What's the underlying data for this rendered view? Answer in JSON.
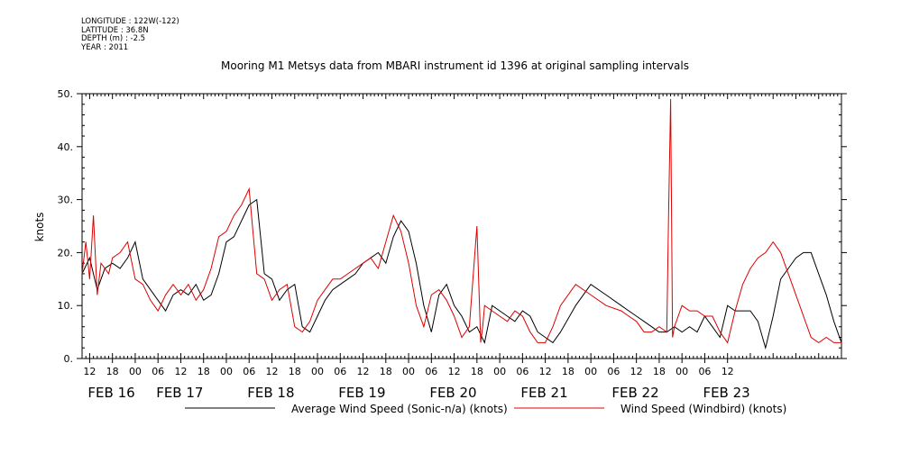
{
  "header": {
    "longitude": "LONGITUDE : 122W(-122)",
    "latitude": "LATITUDE : 36.8N",
    "depth": "DEPTH (m) : -2.5",
    "year": "YEAR : 2011",
    "title": "Mooring M1 Metsys data from MBARI instrument id 1396 at original sampling intervals"
  },
  "colors": {
    "series_average": "#000000",
    "series_windbird": "#dd0000",
    "axis": "#000000"
  },
  "chart_data": {
    "type": "line",
    "title": "Mooring M1 Metsys data from MBARI instrument id 1396 at original sampling intervals",
    "xlabel": "",
    "ylabel": "knots",
    "x_unit": "hours since FEB 16 00:00 (2011)",
    "xlim": [
      10,
      210
    ],
    "ylim": [
      0,
      50
    ],
    "yticks": [
      "0.",
      "10.",
      "20.",
      "30.",
      "40.",
      "50."
    ],
    "yticks_values": [
      0,
      10,
      20,
      30,
      40,
      50
    ],
    "xticks_hour_labels": [
      "12",
      "18",
      "00",
      "06",
      "12",
      "18",
      "00",
      "06",
      "12",
      "18",
      "00",
      "06",
      "12",
      "18",
      "00",
      "06",
      "12",
      "18",
      "00",
      "06",
      "12",
      "18",
      "00",
      "06",
      "12",
      "18",
      "00",
      "06",
      "12"
    ],
    "date_labels": [
      "FEB 16",
      "FEB 17",
      "FEB 18",
      "FEB 19",
      "FEB 20",
      "FEB 21",
      "FEB 22",
      "FEB 23"
    ],
    "grid": false,
    "legend_position": "bottom",
    "series": [
      {
        "name": "Average Wind Speed (Sonic-n/a) (knots)",
        "color": "#000000",
        "x": [
          10,
          12,
          14,
          16,
          18,
          20,
          22,
          24,
          26,
          28,
          30,
          32,
          34,
          36,
          38,
          40,
          42,
          44,
          46,
          48,
          50,
          52,
          54,
          56,
          58,
          60,
          62,
          64,
          66,
          68,
          70,
          72,
          74,
          76,
          78,
          80,
          82,
          84,
          86,
          88,
          90,
          92,
          94,
          96,
          98,
          100,
          102,
          104,
          106,
          108,
          110,
          112,
          114,
          116,
          118,
          120,
          122,
          124,
          126,
          128,
          130,
          132,
          134,
          136,
          140,
          144,
          148,
          152,
          154,
          156,
          158,
          160,
          162,
          164,
          166,
          168,
          170,
          172,
          174,
          176,
          178,
          180,
          182,
          184,
          186,
          188,
          190,
          192,
          194,
          196,
          198,
          200,
          202,
          204,
          206,
          208,
          210
        ],
        "y": [
          16,
          19,
          13,
          17,
          18,
          17,
          19,
          22,
          15,
          13,
          11,
          9,
          12,
          13,
          12,
          14,
          11,
          12,
          16,
          22,
          23,
          26,
          29,
          30,
          16,
          15,
          11,
          13,
          14,
          6,
          5,
          8,
          11,
          13,
          14,
          15,
          16,
          18,
          19,
          20,
          18,
          23,
          26,
          24,
          18,
          10,
          5,
          12,
          14,
          10,
          8,
          5,
          6,
          3,
          10,
          9,
          8,
          7,
          9,
          8,
          5,
          4,
          3,
          5,
          10,
          14,
          12,
          10,
          9,
          8,
          7,
          6,
          5,
          5,
          6,
          5,
          6,
          5,
          8,
          6,
          4,
          10,
          9,
          9,
          9,
          7,
          2,
          8,
          15,
          17,
          19,
          20,
          20,
          16,
          12,
          7,
          3
        ]
      },
      {
        "name": "Wind Speed (Windbird) (knots)",
        "color": "#dd0000",
        "x": [
          10,
          11,
          12,
          13,
          14,
          15,
          16,
          17,
          18,
          20,
          22,
          24,
          26,
          28,
          30,
          32,
          34,
          36,
          38,
          40,
          42,
          44,
          46,
          48,
          50,
          52,
          54,
          56,
          58,
          60,
          62,
          64,
          66,
          68,
          70,
          72,
          74,
          76,
          78,
          80,
          82,
          84,
          86,
          88,
          90,
          92,
          94,
          96,
          98,
          100,
          102,
          104,
          106,
          108,
          110,
          112,
          114,
          115,
          115.5,
          116,
          118,
          120,
          122,
          124,
          126,
          128,
          130,
          132,
          134,
          136,
          140,
          144,
          148,
          152,
          154,
          156,
          158,
          160,
          162,
          164,
          164.5,
          165,
          165.5,
          166,
          168,
          170,
          172,
          174,
          176,
          178,
          180,
          182,
          184,
          186,
          188,
          190,
          192,
          194,
          196,
          198,
          200,
          202,
          204,
          206,
          208,
          210
        ],
        "y": [
          16,
          22,
          15,
          27,
          12,
          18,
          17,
          16,
          19,
          20,
          22,
          15,
          14,
          11,
          9,
          12,
          14,
          12,
          14,
          11,
          13,
          17,
          23,
          24,
          27,
          29,
          32,
          16,
          15,
          11,
          13,
          14,
          6,
          5,
          7,
          11,
          13,
          15,
          15,
          16,
          17,
          18,
          19,
          17,
          22,
          27,
          24,
          18,
          10,
          6,
          12,
          13,
          11,
          8,
          4,
          6,
          25,
          3,
          6,
          10,
          9,
          8,
          7,
          9,
          8,
          5,
          3,
          3,
          6,
          10,
          14,
          12,
          10,
          9,
          8,
          7,
          5,
          5,
          6,
          5,
          28,
          49,
          4,
          6,
          10,
          9,
          9,
          8,
          8,
          5,
          3,
          9,
          14,
          17,
          19,
          20,
          22,
          20,
          16,
          12,
          8,
          4,
          3,
          4,
          3,
          3
        ]
      }
    ]
  }
}
